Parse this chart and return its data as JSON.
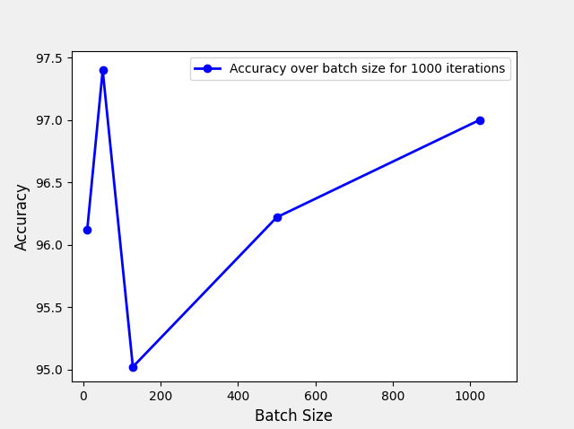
{
  "x": [
    10,
    50,
    128,
    500,
    1024
  ],
  "y": [
    96.12,
    97.4,
    95.02,
    96.22,
    97.0
  ],
  "line_color": "blue",
  "marker": "o",
  "marker_color": "blue",
  "marker_size": 6,
  "linewidth": 2,
  "legend_label": "Accuracy over batch size for 1000 iterations",
  "xlabel": "Batch Size",
  "ylabel": "Accuracy",
  "ylim": [
    94.9,
    97.55
  ],
  "xlim": [
    -30,
    1120
  ],
  "legend_loc": "upper right",
  "background_color": "#f0f0f0",
  "axes_background": "#ffffff"
}
